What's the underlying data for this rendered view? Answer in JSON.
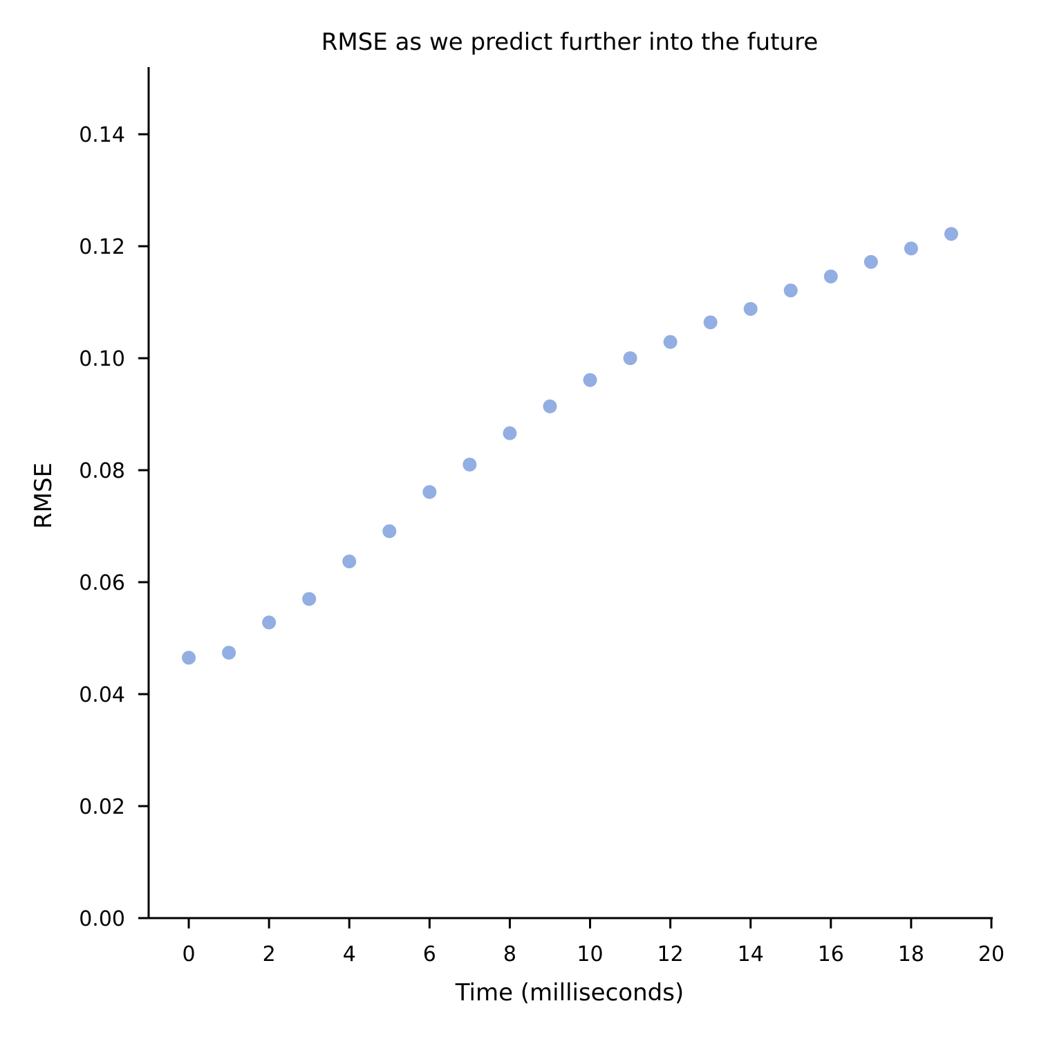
{
  "chart_data": {
    "type": "scatter",
    "title": "RMSE as we predict further into the future",
    "xlabel": "Time (milliseconds)",
    "ylabel": "RMSE",
    "xlim": [
      -1,
      20
    ],
    "ylim": [
      0,
      0.152
    ],
    "xticks": [
      "0",
      "2",
      "4",
      "6",
      "8",
      "10",
      "12",
      "14",
      "16",
      "18",
      "20"
    ],
    "yticks": [
      "0.00",
      "0.02",
      "0.04",
      "0.06",
      "0.08",
      "0.10",
      "0.12",
      "0.14"
    ],
    "grid": false,
    "point_color": "#92aee2",
    "x": [
      0,
      1,
      2,
      3,
      4,
      5,
      6,
      7,
      8,
      9,
      10,
      11,
      12,
      13,
      14,
      15,
      16,
      17,
      18,
      19
    ],
    "y": [
      0.0465,
      0.0474,
      0.0528,
      0.057,
      0.0637,
      0.0691,
      0.0761,
      0.081,
      0.0866,
      0.0914,
      0.0961,
      0.1,
      0.1029,
      0.1064,
      0.1088,
      0.1121,
      0.1146,
      0.1172,
      0.1196,
      0.1222
    ]
  }
}
